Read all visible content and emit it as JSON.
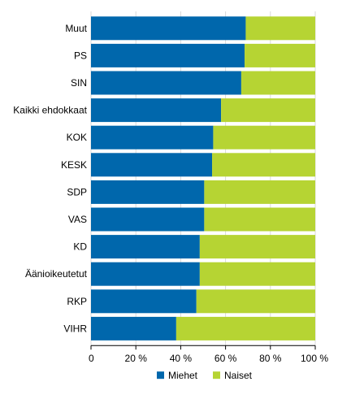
{
  "chart_data": {
    "type": "bar",
    "orientation": "horizontal",
    "stacked": true,
    "normalized": true,
    "categories": [
      "Muut",
      "PS",
      "SIN",
      "Kaikki ehdokkaat",
      "KOK",
      "KESK",
      "SDP",
      "VAS",
      "KD",
      "Äänioikeutetut",
      "RKP",
      "VIHR"
    ],
    "series": [
      {
        "name": "Miehet",
        "color": "#0067ac",
        "values": [
          69,
          68.5,
          67,
          58,
          54.5,
          54,
          50.5,
          50.5,
          48.5,
          48.5,
          47,
          38
        ]
      },
      {
        "name": "Naiset",
        "color": "#b6d433",
        "values": [
          31,
          31.5,
          33,
          42,
          45.5,
          46,
          49.5,
          49.5,
          51.5,
          51.5,
          53,
          62
        ]
      }
    ],
    "xlim": [
      0,
      100
    ],
    "xticks": [
      "0",
      "20 %",
      "40 %",
      "60 %",
      "80 %",
      "100 %"
    ],
    "grid": true,
    "legend_position": "bottom"
  }
}
